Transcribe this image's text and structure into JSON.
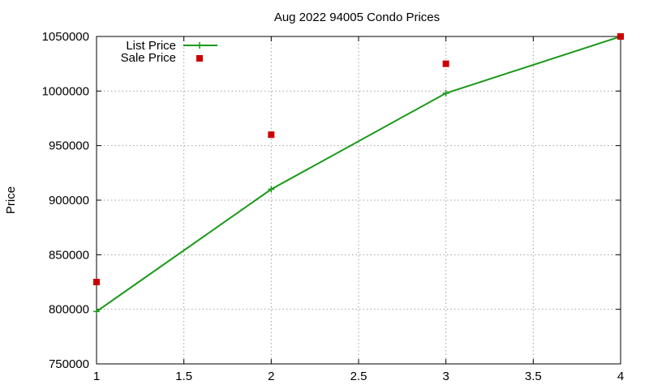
{
  "chart_data": {
    "type": "line",
    "title": "Aug 2022 94005 Condo Prices",
    "xlabel": "",
    "ylabel": "Price",
    "xlim": [
      1,
      4
    ],
    "ylim": [
      750000,
      1050000
    ],
    "xticks": [
      1,
      1.5,
      2,
      2.5,
      3,
      3.5,
      4
    ],
    "xtick_labels": [
      "1",
      "1.5",
      "2",
      "2.5",
      "3",
      "3.5",
      "4"
    ],
    "yticks": [
      750000,
      800000,
      850000,
      900000,
      950000,
      1000000,
      1050000
    ],
    "ytick_labels": [
      "750000",
      "800000",
      "850000",
      "900000",
      "950000",
      "1000000",
      "1050000"
    ],
    "grid": true,
    "legend_position": "top-left",
    "series": [
      {
        "name": "List Price",
        "style": "linespoints",
        "marker": "plus",
        "color": "#1a9a1a",
        "x": [
          1,
          2,
          3,
          4
        ],
        "y": [
          798000,
          910000,
          998000,
          1050000
        ]
      },
      {
        "name": "Sale Price",
        "style": "points",
        "marker": "square",
        "color": "#cc0000",
        "x": [
          1,
          2,
          3,
          4
        ],
        "y": [
          825000,
          960000,
          1025000,
          1050000
        ]
      }
    ]
  }
}
